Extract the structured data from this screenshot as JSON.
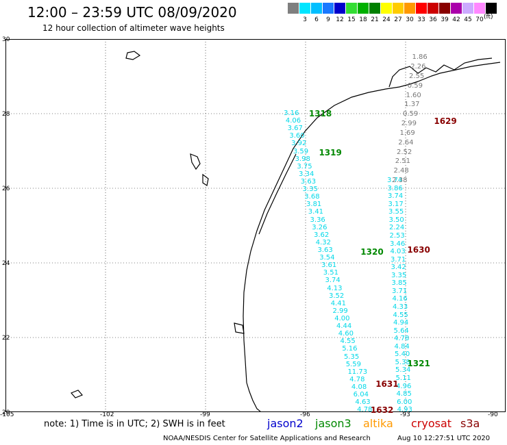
{
  "header": {
    "title": "12:00 – 23:59 UTC 08/09/2020",
    "subtitle": "12 hour collection of altimeter wave heights"
  },
  "legend": {
    "unit": "(ft)",
    "swatches": [
      {
        "color": "#7f7f7f",
        "label": ""
      },
      {
        "color": "#00e5ff",
        "label": "3"
      },
      {
        "color": "#00bfff",
        "label": "6"
      },
      {
        "color": "#1a78ff",
        "label": "9"
      },
      {
        "color": "#0000cc",
        "label": "12"
      },
      {
        "color": "#33dd33",
        "label": "15"
      },
      {
        "color": "#00b000",
        "label": "18"
      },
      {
        "color": "#008000",
        "label": "21"
      },
      {
        "color": "#ffff00",
        "label": "24"
      },
      {
        "color": "#ffcc00",
        "label": "27"
      },
      {
        "color": "#ff9900",
        "label": "30"
      },
      {
        "color": "#ff0000",
        "label": "33"
      },
      {
        "color": "#cc0000",
        "label": "36"
      },
      {
        "color": "#880000",
        "label": "39"
      },
      {
        "color": "#aa00aa",
        "label": "42"
      },
      {
        "color": "#ccaaff",
        "label": "45"
      },
      {
        "color": "#ff88ff",
        "label": "70"
      },
      {
        "color": "#000000",
        "label": ""
      }
    ]
  },
  "axes": {
    "lat_labels": [
      "30",
      "28",
      "26",
      "24",
      "22",
      "20"
    ],
    "lon_labels": [
      "-105",
      "-102",
      "-99",
      "-96",
      "-93",
      "-90"
    ]
  },
  "footer": {
    "note": "note: 1) Time is in UTC; 2) SWH is in feet",
    "satellites": [
      {
        "name": "jason2",
        "color": "#0000cc"
      },
      {
        "name": "jason3",
        "color": "#008800"
      },
      {
        "name": "altika",
        "color": "#ff9900"
      },
      {
        "name": "cryosat",
        "color": "#cc0000"
      },
      {
        "name": "s3a",
        "color": "#880000"
      }
    ],
    "credit": "NOAA/NESDIS Center for Satellite Applications and Research",
    "timestamp": "Aug 10 12:27:51 UTC 2020"
  },
  "map": {
    "pass_labels": [
      {
        "text": "1318",
        "color": "#008800",
        "lon": -95.9,
        "lat": 28.0
      },
      {
        "text": "1319",
        "color": "#008800",
        "lon": -95.6,
        "lat": 26.95
      },
      {
        "text": "1320",
        "color": "#008800",
        "lon": -94.35,
        "lat": 24.3
      },
      {
        "text": "1321",
        "color": "#008800",
        "lon": -92.95,
        "lat": 21.3
      },
      {
        "text": "1629",
        "color": "#880000",
        "lon": -92.15,
        "lat": 27.8
      },
      {
        "text": "1630",
        "color": "#880000",
        "lon": -92.95,
        "lat": 24.35
      },
      {
        "text": "1631",
        "color": "#880000",
        "lon": -93.9,
        "lat": 20.75
      },
      {
        "text": "1632",
        "color": "#880000",
        "lon": -94.05,
        "lat": 20.05
      }
    ],
    "track_a": {
      "color": "#00d8e8",
      "start": {
        "lon": -96.45,
        "lat": 28.0
      },
      "end": {
        "lon": -94.25,
        "lat": 20.05
      },
      "values": [
        "3.16",
        "4.06",
        "3.67",
        "3.60",
        "3.92",
        "3.59",
        "3.98",
        "3.75",
        "3.34",
        "3.63",
        "3.35",
        "3.68",
        "3.81",
        "3.41",
        "3.36",
        "3.26",
        "3.62",
        "4.32",
        "3.63",
        "3.54",
        "3.61",
        "3.51",
        "3.74",
        "4.13",
        "3.52",
        "4.41",
        "2.99",
        "4.00",
        "4.44",
        "4.60",
        "4.55",
        "5.16",
        "5.35",
        "5.59",
        "11.73",
        "4.78",
        "4.08",
        "6.04",
        "4.63",
        "4.78"
      ]
    },
    "track_b": {
      "color": "#00d8e8",
      "start": {
        "lon": -93.35,
        "lat": 26.2
      },
      "end": {
        "lon": -93.05,
        "lat": 20.05
      },
      "values": [
        "3.74",
        "3.86",
        "3.74",
        "3.17",
        "3.55",
        "3.50",
        "2.24",
        "2.53",
        "3.46",
        "4.03",
        "3.71",
        "3.42",
        "3.35",
        "3.85",
        "3.71",
        "4.16",
        "4.33",
        "4.55",
        "4.94",
        "5.64",
        "4.78",
        "4.84",
        "5.40",
        "5.38",
        "5.34",
        "5.11",
        "4.96",
        "4.85",
        "6.00",
        "4.93"
      ]
    },
    "track_c": {
      "color": "#777777",
      "start": {
        "lon": -92.6,
        "lat": 29.5
      },
      "end": {
        "lon": -93.2,
        "lat": 26.2
      },
      "values": [
        "1.86",
        "2.26",
        "2.55",
        "0.59",
        "1.60",
        "1.37",
        "0.59",
        "2.99",
        "1.69",
        "2.64",
        "2.52",
        "2.51",
        "2.48",
        "2.38"
      ]
    }
  }
}
